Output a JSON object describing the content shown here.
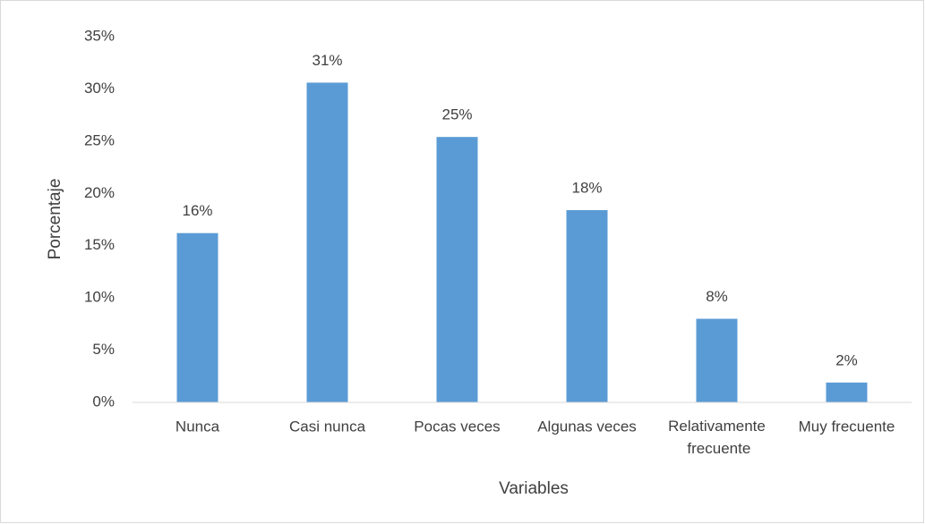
{
  "chart_data": {
    "type": "bar",
    "x_label": "Variables",
    "y_label": "Porcentaje",
    "categories": [
      "Nunca",
      "Casi nunca",
      "Pocas veces",
      "Algunas veces",
      "Relativamente frecuente",
      "Muy frecuente"
    ],
    "values": [
      16.2,
      30.6,
      25.4,
      18.4,
      8.0,
      1.9
    ],
    "value_labels": [
      "16%",
      "31%",
      "25%",
      "18%",
      "8%",
      "2%"
    ],
    "color": "#5b9bd5",
    "ylim": [
      0,
      35
    ],
    "yticks": [
      {
        "value": 0,
        "label": "0%"
      },
      {
        "value": 5,
        "label": "5%"
      },
      {
        "value": 10,
        "label": "10%"
      },
      {
        "value": 15,
        "label": "15%"
      },
      {
        "value": 20,
        "label": "20%"
      },
      {
        "value": 25,
        "label": "25%"
      },
      {
        "value": 30,
        "label": "30%"
      },
      {
        "value": 35,
        "label": "35%"
      }
    ],
    "grid": false
  }
}
